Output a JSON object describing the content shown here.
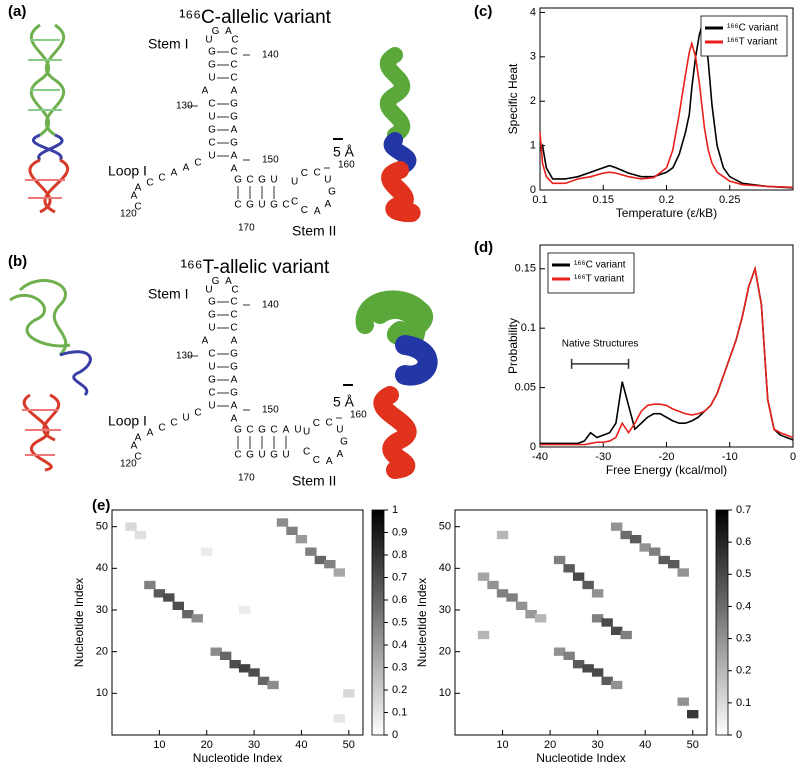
{
  "panel_labels": [
    "(a)",
    "(b)",
    "(c)",
    "(d)",
    "(e)"
  ],
  "variant_c": {
    "title": "¹⁶⁶C-allelic variant",
    "stem1_label": "Stem I",
    "loop1_label": "Loop I",
    "stem2_label": "Stem II",
    "scale_label": "5 Å",
    "numbers": [
      140,
      130,
      150,
      160,
      120,
      170
    ],
    "strands": {
      "loop_top": [
        "U",
        "G",
        "A",
        "C"
      ],
      "stem1_left": [
        "G",
        "G",
        "U",
        "A",
        "C",
        "U",
        "G",
        "C",
        "U"
      ],
      "stem1_right": [
        "C",
        "C",
        "C",
        "A",
        "G",
        "G",
        "A",
        "G",
        "A",
        "A"
      ],
      "loop1": [
        "C",
        "A",
        "A",
        "C",
        "C",
        "A",
        "A",
        "C"
      ],
      "stem2_top": [
        "G",
        "C",
        "G",
        "U"
      ],
      "stem2_bottom": [
        "C",
        "G",
        "U",
        "G",
        "C"
      ],
      "loop2": [
        "U",
        "C",
        "C",
        "U",
        "G",
        "A",
        "A",
        "C",
        "C"
      ]
    }
  },
  "variant_t": {
    "title": "¹⁶⁶T-allelic variant",
    "stem1_label": "Stem I",
    "loop1_label": "Loop I",
    "stem2_label": "Stem II",
    "scale_label": "5 Å",
    "numbers": [
      140,
      130,
      150,
      160,
      120,
      170
    ],
    "strands": {
      "loop_top": [
        "U",
        "G",
        "A",
        "C"
      ],
      "stem1_left": [
        "G",
        "G",
        "U",
        "A",
        "C",
        "U",
        "G",
        "C",
        "U"
      ],
      "stem1_right": [
        "C",
        "C",
        "C",
        "A",
        "G",
        "G",
        "A",
        "G",
        "A",
        "A"
      ],
      "loop1": [
        "C",
        "U",
        "C",
        "C",
        "A",
        "A",
        "A",
        "C"
      ],
      "stem2_top": [
        "G",
        "C",
        "G",
        "C",
        "A",
        "U"
      ],
      "stem2_bottom": [
        "C",
        "G",
        "U",
        "G",
        "U"
      ],
      "loop2": [
        "U",
        "C",
        "C",
        "U",
        "G",
        "A",
        "A",
        "C",
        "C"
      ]
    }
  },
  "chart_data": [
    {
      "type": "line",
      "xlabel": "Temperature (ε/kB)",
      "ylabel": "Specific Heat",
      "x": [
        0.1,
        0.102,
        0.105,
        0.11,
        0.12,
        0.13,
        0.14,
        0.15,
        0.155,
        0.16,
        0.17,
        0.18,
        0.19,
        0.2,
        0.205,
        0.21,
        0.215,
        0.218,
        0.22,
        0.223,
        0.226,
        0.228,
        0.23,
        0.233,
        0.236,
        0.24,
        0.245,
        0.25,
        0.26,
        0.28,
        0.3
      ],
      "series": [
        {
          "name": "¹⁶⁶C variant",
          "color": "#000000",
          "values": [
            0.9,
            1.0,
            0.5,
            0.25,
            0.25,
            0.3,
            0.4,
            0.5,
            0.55,
            0.5,
            0.38,
            0.3,
            0.3,
            0.4,
            0.5,
            0.8,
            1.3,
            1.7,
            2.3,
            3.0,
            3.5,
            3.7,
            3.6,
            2.9,
            1.9,
            1.0,
            0.5,
            0.3,
            0.15,
            0.08,
            0.05
          ]
        },
        {
          "name": "¹⁶⁶T variant",
          "color": "#e8201a",
          "values": [
            1.3,
            0.6,
            0.3,
            0.15,
            0.15,
            0.25,
            0.3,
            0.38,
            0.4,
            0.38,
            0.3,
            0.25,
            0.28,
            0.5,
            0.9,
            1.7,
            2.6,
            3.1,
            3.3,
            3.0,
            2.4,
            1.9,
            1.4,
            0.9,
            0.6,
            0.4,
            0.3,
            0.2,
            0.12,
            0.08,
            0.06
          ]
        }
      ],
      "xlim": [
        0.1,
        0.3
      ],
      "xticks": [
        0.1,
        0.15,
        0.2,
        0.25
      ],
      "ylim": [
        0,
        4.1
      ],
      "yticks": [
        0,
        1,
        2,
        3,
        4
      ],
      "legend": "upper right"
    },
    {
      "type": "line",
      "xlabel": "Free Energy (kcal/mol)",
      "ylabel": "Probability",
      "x": [
        -40,
        -39,
        -38,
        -37,
        -36,
        -35,
        -34,
        -33,
        -32,
        -31,
        -30,
        -29,
        -28,
        -27,
        -26,
        -25,
        -24,
        -23,
        -22,
        -21,
        -20,
        -19,
        -18,
        -17,
        -16,
        -15,
        -14,
        -13,
        -12,
        -11,
        -10,
        -9,
        -8,
        -7,
        -6,
        -5,
        -4,
        -3,
        -2,
        -1,
        0
      ],
      "series": [
        {
          "name": "¹⁶⁶C variant",
          "color": "#000000",
          "values": [
            0.003,
            0.003,
            0.003,
            0.003,
            0.003,
            0.003,
            0.003,
            0.005,
            0.012,
            0.008,
            0.01,
            0.012,
            0.02,
            0.055,
            0.035,
            0.015,
            0.02,
            0.025,
            0.028,
            0.028,
            0.025,
            0.022,
            0.02,
            0.02,
            0.022,
            0.025,
            0.03,
            0.035,
            0.045,
            0.06,
            0.075,
            0.09,
            0.11,
            0.135,
            0.15,
            0.12,
            0.04,
            0.015,
            0.01,
            0.008,
            0.006
          ]
        },
        {
          "name": "¹⁶⁶T variant",
          "color": "#e8201a",
          "values": [
            0.002,
            0.002,
            0.002,
            0.002,
            0.002,
            0.002,
            0.002,
            0.002,
            0.003,
            0.004,
            0.004,
            0.005,
            0.008,
            0.02,
            0.012,
            0.02,
            0.03,
            0.035,
            0.036,
            0.036,
            0.035,
            0.032,
            0.03,
            0.028,
            0.027,
            0.028,
            0.03,
            0.035,
            0.045,
            0.06,
            0.075,
            0.09,
            0.11,
            0.135,
            0.15,
            0.12,
            0.04,
            0.015,
            0.012,
            0.01,
            0.008
          ]
        }
      ],
      "xlim": [
        -40,
        0
      ],
      "xticks": [
        -40,
        -30,
        -20,
        -10,
        0
      ],
      "ylim": [
        0,
        0.17
      ],
      "yticks": [
        0,
        0.05,
        0.1,
        0.15
      ],
      "legend": "upper left",
      "annotation": {
        "text": "Native Structures",
        "x": [
          -35,
          -26
        ],
        "y": 0.07
      }
    },
    {
      "type": "heatmap",
      "xlabel": "Nucleotide Index",
      "ylabel": "Nucleotide Index",
      "x": [
        8,
        10,
        12,
        14,
        16,
        18,
        22,
        24,
        26,
        28,
        30,
        32,
        34,
        36,
        38,
        40,
        42,
        44,
        46,
        48,
        4,
        6,
        50,
        48,
        20,
        28
      ],
      "y": [
        36,
        34,
        33,
        31,
        29,
        28,
        20,
        19,
        17,
        16,
        15,
        13,
        12,
        51,
        49,
        47,
        44,
        42,
        41,
        39,
        50,
        48,
        10,
        4,
        44,
        30
      ],
      "values": [
        0.5,
        0.65,
        0.7,
        0.7,
        0.6,
        0.45,
        0.45,
        0.6,
        0.7,
        0.75,
        0.7,
        0.6,
        0.45,
        0.45,
        0.5,
        0.4,
        0.5,
        0.6,
        0.5,
        0.35,
        0.15,
        0.12,
        0.15,
        0.1,
        0.08,
        0.08
      ],
      "xlim": [
        0,
        53
      ],
      "xticks": [
        10,
        20,
        30,
        40,
        50
      ],
      "ylim": [
        0,
        54
      ],
      "yticks": [
        10,
        20,
        30,
        40,
        50
      ],
      "clim": [
        0,
        1
      ],
      "cticks": [
        0,
        0.1,
        0.2,
        0.3,
        0.4,
        0.5,
        0.6,
        0.7,
        0.8,
        0.9,
        1
      ]
    },
    {
      "type": "heatmap",
      "xlabel": "Nucleotide Index",
      "ylabel": "Nucleotide Index",
      "x": [
        6,
        8,
        10,
        12,
        14,
        16,
        18,
        22,
        24,
        26,
        28,
        30,
        32,
        34,
        22,
        24,
        26,
        28,
        30,
        30,
        32,
        34,
        36,
        34,
        36,
        38,
        40,
        42,
        44,
        46,
        48,
        50,
        48,
        6,
        10
      ],
      "y": [
        38,
        36,
        34,
        33,
        31,
        29,
        28,
        20,
        19,
        17,
        16,
        15,
        13,
        12,
        42,
        40,
        38,
        36,
        34,
        28,
        27,
        25,
        24,
        50,
        48,
        47,
        45,
        44,
        42,
        41,
        39,
        5,
        8,
        24,
        48
      ],
      "values": [
        0.25,
        0.3,
        0.35,
        0.35,
        0.3,
        0.28,
        0.2,
        0.3,
        0.35,
        0.45,
        0.5,
        0.5,
        0.45,
        0.3,
        0.35,
        0.45,
        0.5,
        0.45,
        0.3,
        0.35,
        0.5,
        0.5,
        0.35,
        0.3,
        0.4,
        0.45,
        0.3,
        0.35,
        0.45,
        0.45,
        0.3,
        0.55,
        0.3,
        0.2,
        0.2
      ],
      "xlim": [
        0,
        53
      ],
      "xticks": [
        10,
        20,
        30,
        40,
        50
      ],
      "ylim": [
        0,
        54
      ],
      "yticks": [
        10,
        20,
        30,
        40,
        50
      ],
      "clim": [
        0,
        0.7
      ],
      "cticks": [
        0,
        0.1,
        0.2,
        0.3,
        0.4,
        0.5,
        0.6,
        0.7
      ]
    }
  ]
}
